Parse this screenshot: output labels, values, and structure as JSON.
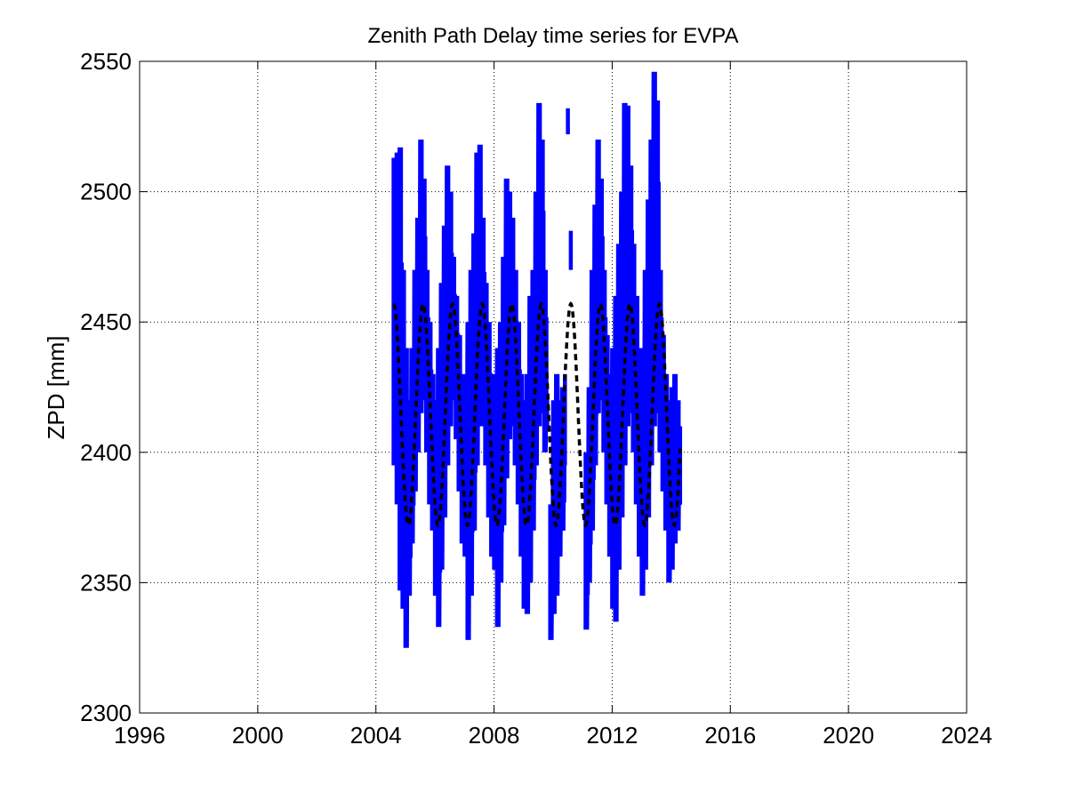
{
  "chart_data": {
    "type": "line",
    "title": "Zenith Path Delay time series for EVPA",
    "xlabel": "",
    "ylabel": "ZPD [mm]",
    "xlim": [
      1996,
      2024
    ],
    "ylim": [
      2300,
      2550
    ],
    "xticks": [
      1996,
      2000,
      2004,
      2008,
      2012,
      2016,
      2020,
      2024
    ],
    "yticks": [
      2300,
      2350,
      2400,
      2450,
      2500,
      2550
    ],
    "xtick_labels": [
      "1996",
      "2000",
      "2004",
      "2008",
      "2012",
      "2016",
      "2020",
      "2024"
    ],
    "ytick_labels": [
      "2300",
      "2350",
      "2400",
      "2450",
      "2500",
      "2550"
    ],
    "grid": true,
    "legend": "none",
    "series": [
      {
        "style": "solid-thick",
        "color": "#0000ff",
        "segments": [
          {
            "x": [
              2004.6,
              2004.7,
              2004.8,
              2004.9,
              2005.0,
              2005.1,
              2005.2,
              2005.3,
              2005.4,
              2005.5,
              2005.6,
              2005.7,
              2005.8,
              2005.9,
              2006.0,
              2006.1,
              2006.2,
              2006.3,
              2006.4,
              2006.5,
              2006.6,
              2006.7,
              2006.8,
              2006.9,
              2007.0,
              2007.1,
              2007.2,
              2007.3,
              2007.4,
              2007.5,
              2007.6,
              2007.7,
              2007.8,
              2007.9,
              2008.0,
              2008.1,
              2008.2,
              2008.3,
              2008.4,
              2008.5,
              2008.6,
              2008.7,
              2008.8,
              2008.9,
              2009.0,
              2009.1,
              2009.2,
              2009.3,
              2009.4,
              2009.5,
              2009.6,
              2009.7,
              2009.8
            ],
            "ymin": [
              2395,
              2380,
              2347,
              2340,
              2325,
              2345,
              2365,
              2385,
              2400,
              2415,
              2420,
              2400,
              2380,
              2370,
              2345,
              2333,
              2355,
              2375,
              2395,
              2410,
              2420,
              2405,
              2385,
              2365,
              2360,
              2328,
              2345,
              2370,
              2395,
              2410,
              2410,
              2395,
              2375,
              2360,
              2355,
              2333,
              2350,
              2372,
              2390,
              2405,
              2410,
              2395,
              2380,
              2360,
              2340,
              2338,
              2350,
              2370,
              2395,
              2410,
              2415,
              2400,
              2410
            ],
            "ymax": [
              2513,
              2515,
              2517,
              2470,
              2440,
              2420,
              2440,
              2470,
              2490,
              2520,
              2505,
              2470,
              2450,
              2430,
              2420,
              2440,
              2465,
              2487,
              2510,
              2500,
              2475,
              2460,
              2445,
              2430,
              2430,
              2450,
              2470,
              2484,
              2515,
              2518,
              2490,
              2465,
              2450,
              2430,
              2430,
              2440,
              2450,
              2475,
              2505,
              2500,
              2490,
              2470,
              2450,
              2430,
              2420,
              2430,
              2460,
              2470,
              2500,
              2534,
              2520,
              2470,
              2420
            ]
          },
          {
            "x": [
              2009.9,
              2010.0,
              2010.1,
              2010.2,
              2010.3,
              2010.4
            ],
            "ymin": [
              2328,
              2338,
              2345,
              2360,
              2370,
              2395
            ],
            "ymax": [
              2380,
              2420,
              2430,
              2420,
              2425,
              2430
            ]
          },
          {
            "x": [
              2010.5
            ],
            "ymin": [
              2522
            ],
            "ymax": [
              2532
            ]
          },
          {
            "x": [
              2010.6
            ],
            "ymin": [
              2470
            ],
            "ymax": [
              2485
            ]
          },
          {
            "x": [
              2011.1,
              2011.2,
              2011.3,
              2011.4,
              2011.5,
              2011.6,
              2011.7,
              2011.8,
              2011.9,
              2012.0,
              2012.1,
              2012.2,
              2012.3,
              2012.4,
              2012.5,
              2012.6,
              2012.7,
              2012.8,
              2012.9,
              2013.0,
              2013.1,
              2013.2,
              2013.3,
              2013.4,
              2013.5,
              2013.6,
              2013.7,
              2013.8,
              2013.9,
              2014.0,
              2014.1,
              2014.2,
              2014.3
            ],
            "ymin": [
              2332,
              2350,
              2370,
              2395,
              2415,
              2420,
              2400,
              2380,
              2360,
              2340,
              2335,
              2355,
              2375,
              2395,
              2410,
              2415,
              2400,
              2380,
              2360,
              2345,
              2355,
              2375,
              2395,
              2410,
              2415,
              2400,
              2385,
              2370,
              2350,
              2355,
              2365,
              2370,
              2380
            ],
            "ymax": [
              2400,
              2425,
              2470,
              2495,
              2520,
              2505,
              2470,
              2445,
              2430,
              2440,
              2460,
              2480,
              2500,
              2534,
              2533,
              2510,
              2480,
              2460,
              2440,
              2440,
              2470,
              2497,
              2520,
              2546,
              2535,
              2470,
              2445,
              2430,
              2420,
              2425,
              2430,
              2420,
              2410
            ]
          }
        ]
      },
      {
        "style": "dashed",
        "color": "#000000",
        "period_years": 1.0,
        "x_start": 2004.6,
        "x_end": 2014.3,
        "peak_years": [
          2004.6,
          2005.6,
          2006.6,
          2007.6,
          2008.6,
          2009.6,
          2010.6,
          2011.6,
          2012.6,
          2013.6
        ],
        "y_peak": 2457,
        "y_trough": 2372
      }
    ]
  }
}
